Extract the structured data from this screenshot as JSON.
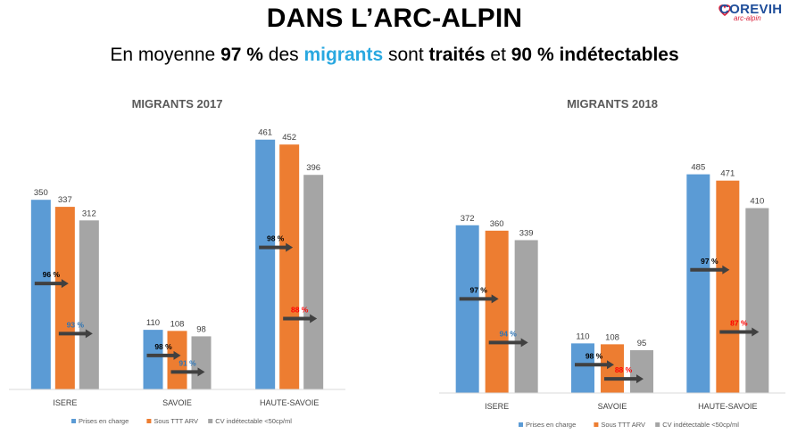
{
  "slide": {
    "title": "DANS L’ARC-ALPIN",
    "subtitle_parts": [
      "En moyenne ",
      "97 %",
      " des ",
      "migrants",
      " sont ",
      "traités",
      " et ",
      "90 % indétectables"
    ]
  },
  "logo": {
    "name": "COREVIH",
    "sub": "arc-alpin"
  },
  "colors": {
    "prises": "#5b9bd5",
    "sous": "#ed7d31",
    "cv": "#a5a5a5",
    "arrow": "#404040",
    "pct_normal": "#000000",
    "pct_alt": "#2e75b6",
    "pct_red": "#ff0000"
  },
  "chart_data": [
    {
      "type": "bar",
      "title": "MIGRANTS 2017",
      "categories": [
        "ISERE",
        "SAVOIE",
        "HAUTE-SAVOIE"
      ],
      "series": [
        {
          "name": "Prises en charge",
          "values": [
            350,
            110,
            461
          ]
        },
        {
          "name": "Sous TTT ARV",
          "values": [
            337,
            108,
            452
          ]
        },
        {
          "name": "CV indétectable <50cp/ml",
          "values": [
            312,
            98,
            396
          ]
        }
      ],
      "ylim": [
        0,
        480
      ],
      "legend": "bottom",
      "grid": false,
      "annotations": [
        {
          "category": "ISERE",
          "label": "96 %",
          "between": "Prises en charge-Sous TTT ARV",
          "color": "#000000"
        },
        {
          "category": "ISERE",
          "label": "93 %",
          "between": "Sous TTT ARV-CV indétectable <50cp/ml",
          "color": "#2e75b6"
        },
        {
          "category": "SAVOIE",
          "label": "98 %",
          "between": "Prises en charge-Sous TTT ARV",
          "color": "#000000"
        },
        {
          "category": "SAVOIE",
          "label": "91 %",
          "between": "Sous TTT ARV-CV indétectable <50cp/ml",
          "color": "#2e75b6"
        },
        {
          "category": "HAUTE-SAVOIE",
          "label": "98 %",
          "between": "Prises en charge-Sous TTT ARV",
          "color": "#000000"
        },
        {
          "category": "HAUTE-SAVOIE",
          "label": "88 %",
          "between": "Sous TTT ARV-CV indétectable <50cp/ml",
          "color": "#ff0000"
        }
      ]
    },
    {
      "type": "bar",
      "title": "MIGRANTS 2018",
      "categories": [
        "ISERE",
        "SAVOIE",
        "HAUTE-SAVOIE"
      ],
      "series": [
        {
          "name": "Prises en charge",
          "values": [
            372,
            110,
            485
          ]
        },
        {
          "name": "Sous TTT ARV",
          "values": [
            360,
            108,
            471
          ]
        },
        {
          "name": "CV indétectable <50cp/ml",
          "values": [
            339,
            95,
            410
          ]
        }
      ],
      "ylim": [
        0,
        480
      ],
      "legend": "bottom",
      "grid": false,
      "annotations": [
        {
          "category": "ISERE",
          "label": "97 %",
          "between": "Prises en charge-Sous TTT ARV",
          "color": "#000000"
        },
        {
          "category": "ISERE",
          "label": "94 %",
          "between": "Sous TTT ARV-CV indétectable <50cp/ml",
          "color": "#2e75b6"
        },
        {
          "category": "SAVOIE",
          "label": "98 %",
          "between": "Prises en charge-Sous TTT ARV",
          "color": "#000000"
        },
        {
          "category": "SAVOIE",
          "label": "88 %",
          "between": "Sous TTT ARV-CV indétectable <50cp/ml",
          "color": "#ff0000"
        },
        {
          "category": "HAUTE-SAVOIE",
          "label": "97 %",
          "between": "Prises en charge-Sous TTT ARV",
          "color": "#000000"
        },
        {
          "category": "HAUTE-SAVOIE",
          "label": "87 %",
          "between": "Sous TTT ARV-CV indétectable <50cp/ml",
          "color": "#ff0000"
        }
      ]
    }
  ]
}
